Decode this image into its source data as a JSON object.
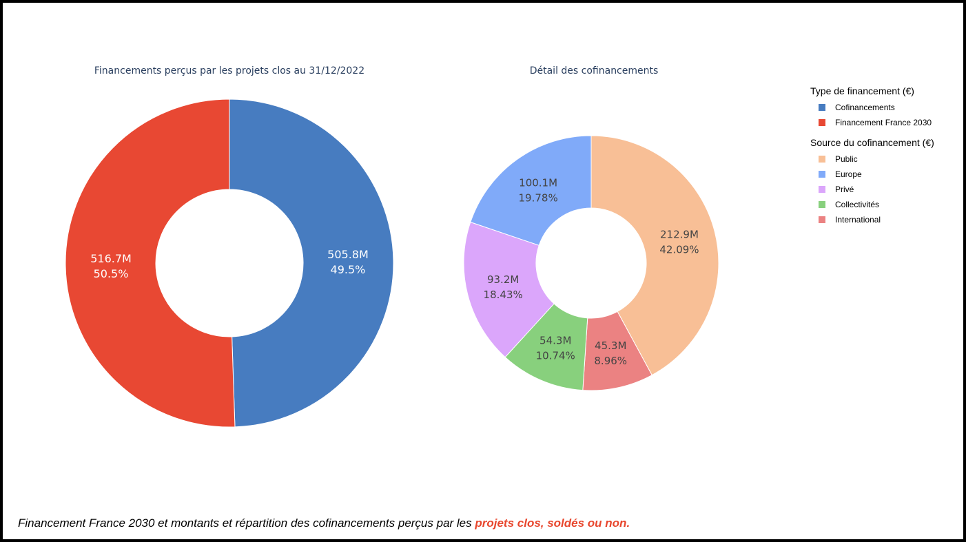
{
  "chart_data": [
    {
      "type": "pie",
      "hole": true,
      "title": "Financements perçus par les projets clos au 31/12/2022",
      "legend_title": "Type de financement (€)",
      "slices": [
        {
          "label": "Cofinancements",
          "value_label": "505.8M",
          "value": 505.8,
          "percent_label": "49.5%",
          "percent": 49.5,
          "color": "#477cc0"
        },
        {
          "label": "Financement France 2030",
          "value_label": "516.7M",
          "value": 516.7,
          "percent_label": "50.5%",
          "percent": 50.5,
          "color": "#e84833"
        }
      ]
    },
    {
      "type": "pie",
      "hole": true,
      "title": "Détail des cofinancements",
      "legend_title": "Source du cofinancement (€)",
      "slices": [
        {
          "label": "Public",
          "value_label": "212.9M",
          "value": 212.9,
          "percent_label": "42.09%",
          "percent": 42.09,
          "color": "#f8bf96"
        },
        {
          "label": "International",
          "value_label": "45.3M",
          "value": 45.3,
          "percent_label": "8.96%",
          "percent": 8.96,
          "color": "#eb8282"
        },
        {
          "label": "Collectivités",
          "value_label": "54.3M",
          "value": 54.3,
          "percent_label": "10.74%",
          "percent": 10.74,
          "color": "#88d07d"
        },
        {
          "label": "Privé",
          "value_label": "93.2M",
          "value": 93.2,
          "percent_label": "18.43%",
          "percent": 18.43,
          "color": "#dba6fb"
        },
        {
          "label": "Europe",
          "value_label": "100.1M",
          "value": 100.1,
          "percent_label": "19.78%",
          "percent": 19.78,
          "color": "#80aaf9"
        }
      ],
      "legend_order": [
        "Public",
        "Europe",
        "Privé",
        "Collectivités",
        "International"
      ]
    }
  ],
  "caption": {
    "text": "Financement France 2030 et montants et répartition des cofinancements perçus par les ",
    "highlight": "projets clos, soldés ou non."
  }
}
